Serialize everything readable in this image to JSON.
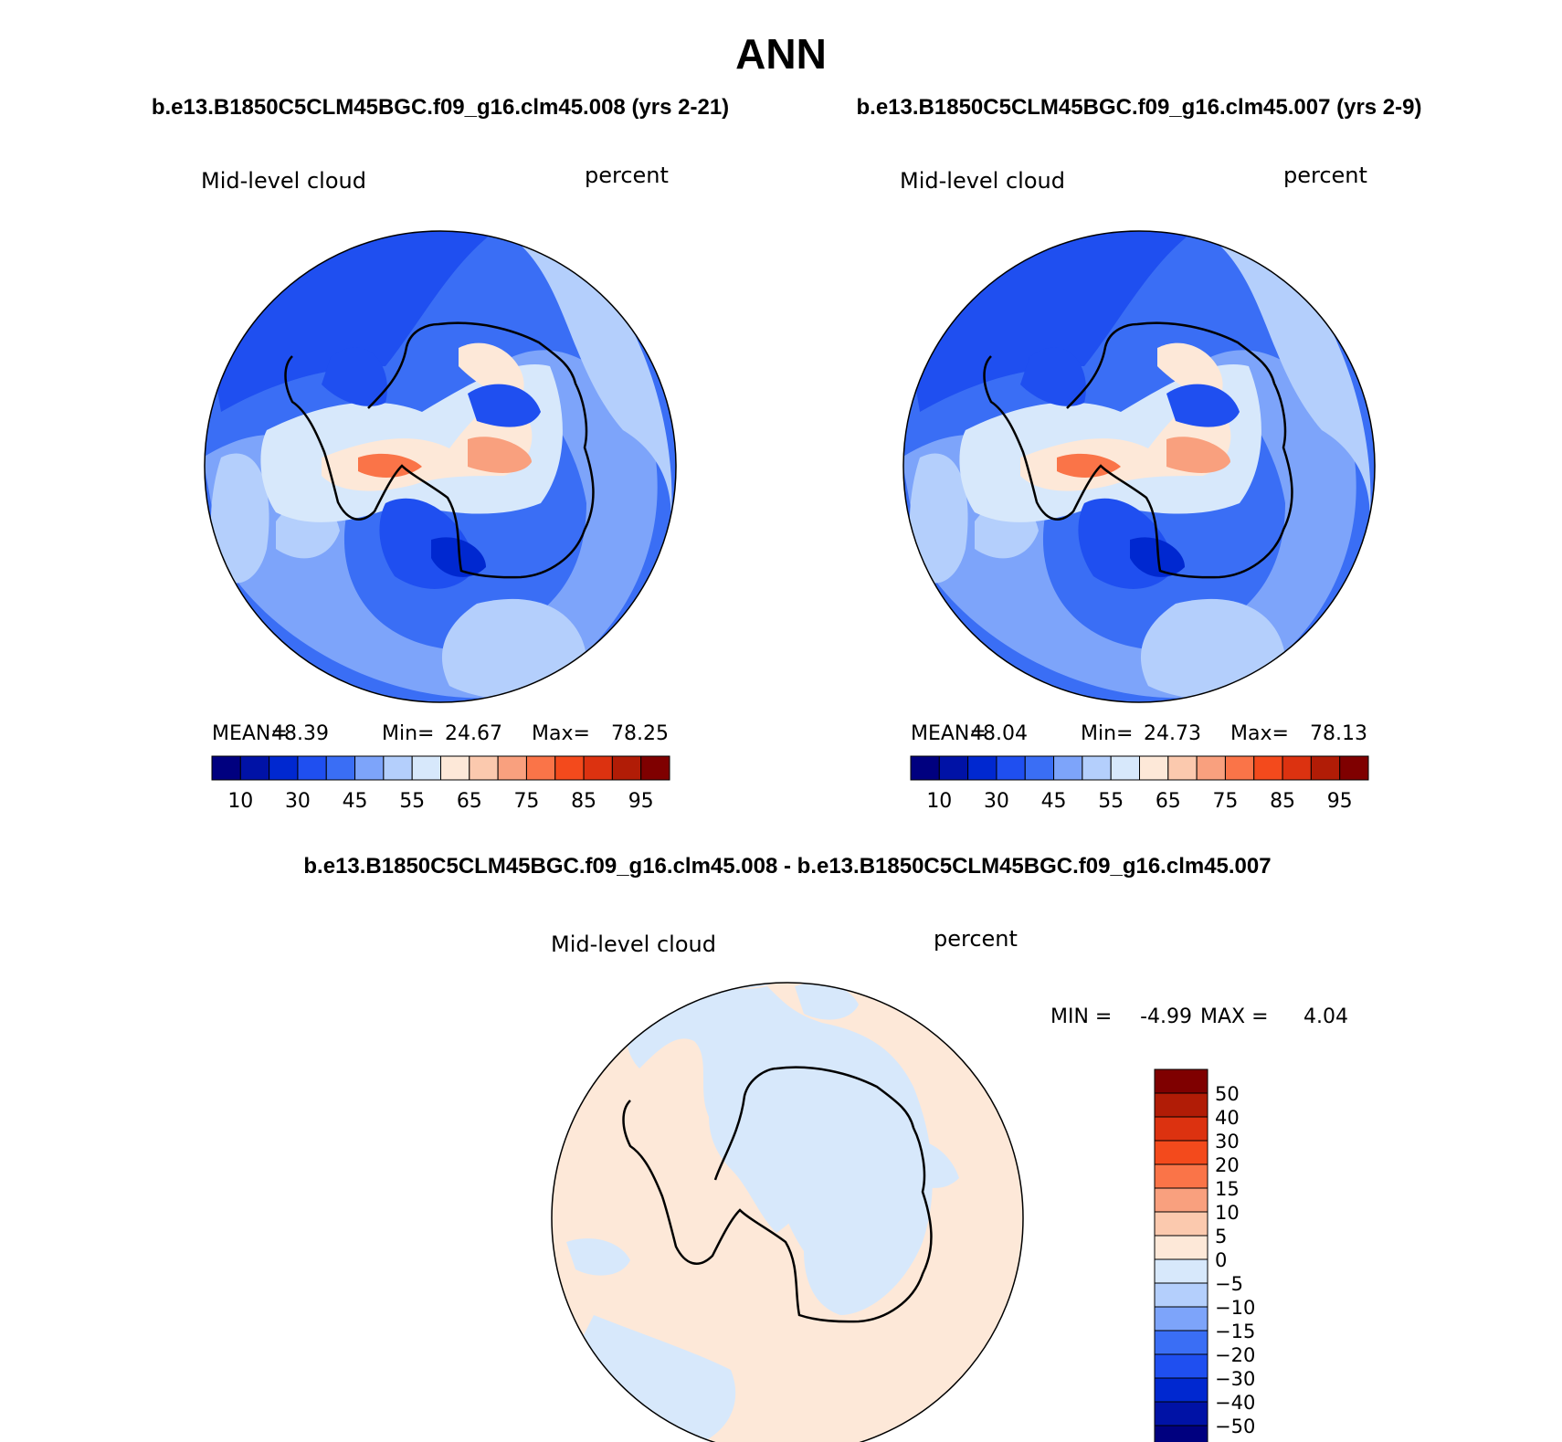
{
  "title": "ANN",
  "panels": [
    {
      "case_label": "b.e13.B1850C5CLM45BGC.f09_g16.clm45.008 (yrs 2-21)",
      "variable": "Mid-level cloud",
      "units": "percent",
      "stats": {
        "mean_label": "MEAN=",
        "mean": "48.39",
        "min_label": "Min=",
        "min": "24.67",
        "max_label": "Max=",
        "max": "78.25"
      }
    },
    {
      "case_label": "b.e13.B1850C5CLM45BGC.f09_g16.clm45.007 (yrs 2-9)",
      "variable": "Mid-level cloud",
      "units": "percent",
      "stats": {
        "mean_label": "MEAN=",
        "mean": "48.04",
        "min_label": "Min=",
        "min": "24.73",
        "max_label": "Max=",
        "max": "78.13"
      }
    }
  ],
  "colorbar_main": {
    "colors": [
      "#00007f",
      "#0012a6",
      "#0028d0",
      "#1f4ff0",
      "#3a6ef5",
      "#7da4fa",
      "#b4cffc",
      "#d7e8fb",
      "#fde8d8",
      "#fbc9ae",
      "#f9a07e",
      "#fa7448",
      "#f34a1c",
      "#dc3210",
      "#b11c06",
      "#7f0000"
    ],
    "tick_labels": [
      "10",
      "30",
      "45",
      "55",
      "65",
      "75",
      "85",
      "95"
    ]
  },
  "difference": {
    "title": "b.e13.B1850C5CLM45BGC.f09_g16.clm45.008 - b.e13.B1850C5CLM45BGC.f09_g16.clm45.007",
    "variable": "Mid-level cloud",
    "units": "percent",
    "min_label": "MIN =",
    "min": "-4.99",
    "max_label": "MAX =",
    "max": "4.04",
    "colorbar": {
      "colors": [
        "#7f0000",
        "#b11c06",
        "#dc3210",
        "#f34a1c",
        "#fa7448",
        "#f9a07e",
        "#fbc9ae",
        "#fde8d8",
        "#d7e8fb",
        "#b4cffc",
        "#7da4fa",
        "#3a6ef5",
        "#1f4ff0",
        "#0028d0",
        "#0012a6",
        "#00007f"
      ],
      "tick_labels": [
        "50",
        "40",
        "30",
        "20",
        "15",
        "10",
        "5",
        "0",
        "−5",
        "−10",
        "−15",
        "−20",
        "−30",
        "−40",
        "−50"
      ]
    }
  }
}
